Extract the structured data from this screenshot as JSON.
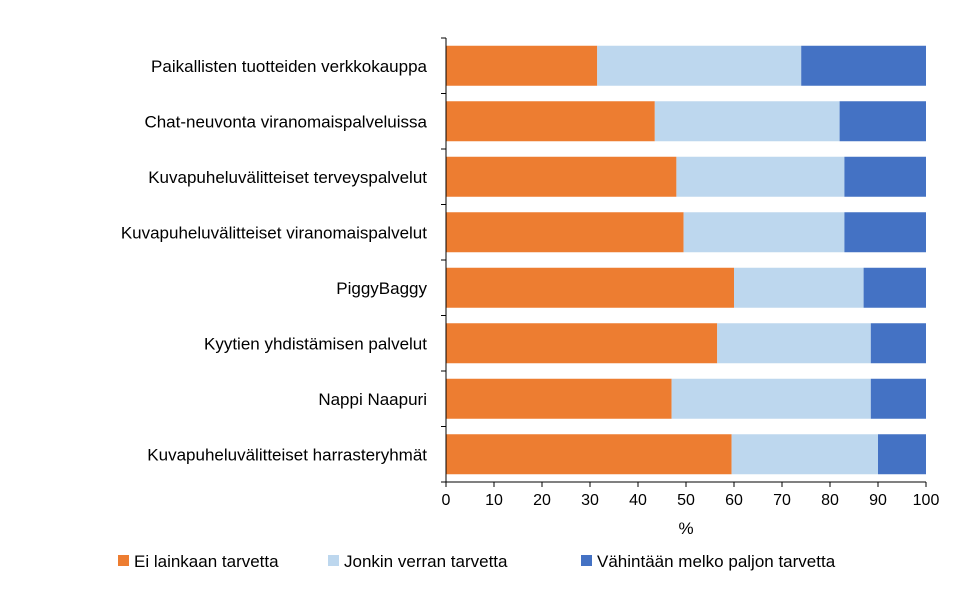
{
  "chart_data": {
    "type": "bar",
    "orientation": "horizontal",
    "stacked": true,
    "categories": [
      "Paikallisten tuotteiden verkkokauppa",
      "Chat-neuvonta viranomaispalveluissa",
      "Kuvapuheluvälitteiset terveyspalvelut",
      "Kuvapuheluvälitteiset viranomaispalvelut",
      "PiggyBaggy",
      "Kyytien yhdistämisen palvelut",
      "Nappi Naapuri",
      "Kuvapuheluvälitteiset harrasteryhmät"
    ],
    "series": [
      {
        "name": "Ei lainkaan tarvetta",
        "color": "#ED7D31",
        "values": [
          31.5,
          43.5,
          48,
          49.5,
          60,
          56.5,
          47,
          59.5
        ]
      },
      {
        "name": "Jonkin verran tarvetta",
        "color": "#BDD7EE",
        "values": [
          42.5,
          38.5,
          35,
          33.5,
          27,
          32,
          41.5,
          30.5
        ]
      },
      {
        "name": "Vähintään melko paljon tarvetta",
        "color": "#4472C4",
        "values": [
          26,
          18,
          17,
          17,
          13,
          11.5,
          11.5,
          10
        ]
      }
    ],
    "xlabel": "%",
    "xlim": [
      0,
      100
    ],
    "xticks": [
      "0",
      "10",
      "20",
      "30",
      "40",
      "50",
      "60",
      "70",
      "80",
      "90",
      "100"
    ],
    "legend_position": "bottom",
    "grid": false
  }
}
